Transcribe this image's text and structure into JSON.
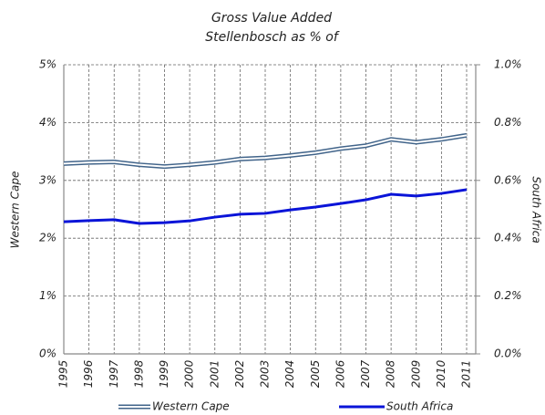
{
  "chart_data": {
    "type": "line",
    "title": "Gross Value Added",
    "subtitle": "Stellenbosch as % of",
    "y_label": "Western Cape",
    "y2_label": "South Africa",
    "categories": [
      "1995",
      "1996",
      "1997",
      "1998",
      "1999",
      "2000",
      "2001",
      "2002",
      "2003",
      "2004",
      "2005",
      "2006",
      "2007",
      "2008",
      "2009",
      "2010",
      "2011"
    ],
    "series": [
      {
        "name": "Western Cape",
        "color": "#41648a",
        "style": "double",
        "values": [
          3.29,
          3.31,
          3.32,
          3.27,
          3.24,
          3.27,
          3.31,
          3.37,
          3.39,
          3.43,
          3.48,
          3.55,
          3.6,
          3.71,
          3.66,
          3.71,
          3.78
        ]
      },
      {
        "name": "South Africa",
        "color": "#0a14d8",
        "axis": "y2",
        "values": [
          0.457,
          0.461,
          0.464,
          0.451,
          0.454,
          0.46,
          0.473,
          0.483,
          0.486,
          0.498,
          0.508,
          0.52,
          0.533,
          0.552,
          0.546,
          0.555,
          0.568
        ]
      }
    ],
    "ylim": [
      0,
      5
    ],
    "yticks": [
      {
        "value": 0,
        "label": "0%"
      },
      {
        "value": 1,
        "label": "1%"
      },
      {
        "value": 2,
        "label": "2%"
      },
      {
        "value": 3,
        "label": "3%"
      },
      {
        "value": 4,
        "label": "4%"
      },
      {
        "value": 5,
        "label": "5%"
      }
    ],
    "y2lim": [
      0,
      1
    ],
    "y2ticks": [
      {
        "value": 0,
        "label": "0.0%"
      },
      {
        "value": 0.2,
        "label": "0.2%"
      },
      {
        "value": 0.4,
        "label": "0.4%"
      },
      {
        "value": 0.6,
        "label": "0.6%"
      },
      {
        "value": 0.8,
        "label": "0.8%"
      },
      {
        "value": 1,
        "label": "1.0%"
      }
    ],
    "grid": true
  }
}
